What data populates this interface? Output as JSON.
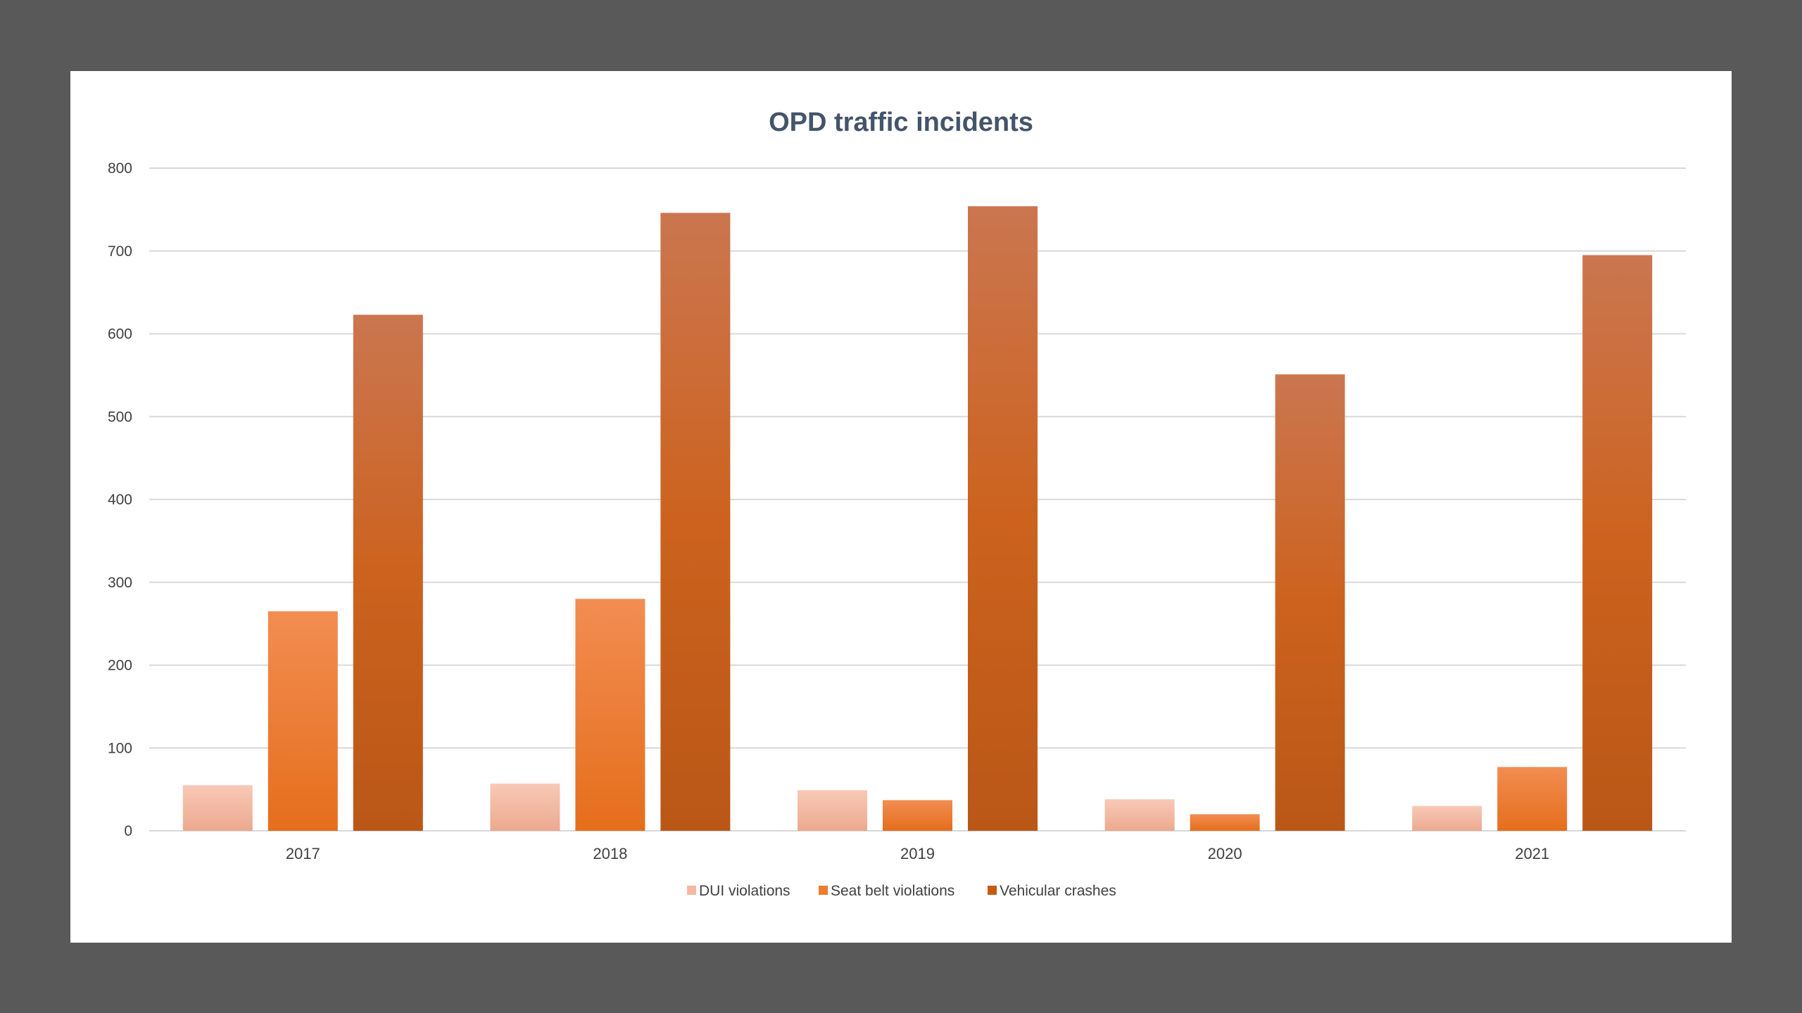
{
  "chart_data": {
    "type": "bar",
    "title": "OPD traffic incidents",
    "xlabel": "",
    "ylabel": "",
    "ylim": [
      0,
      800
    ],
    "yticks": [
      0,
      100,
      200,
      300,
      400,
      500,
      600,
      700,
      800
    ],
    "categories": [
      "2017",
      "2018",
      "2019",
      "2020",
      "2021"
    ],
    "grid": true,
    "legend_position": "bottom",
    "series": [
      {
        "name": "DUI violations",
        "values": [
          55,
          57,
          49,
          38,
          30
        ],
        "color": "#F4B8A3"
      },
      {
        "name": "Seat belt violations",
        "values": [
          265,
          280,
          37,
          20,
          77
        ],
        "color": "#ED7D31"
      },
      {
        "name": "Vehicular crashes",
        "values": [
          623,
          746,
          754,
          551,
          695
        ],
        "color": "#C55A11"
      }
    ]
  }
}
